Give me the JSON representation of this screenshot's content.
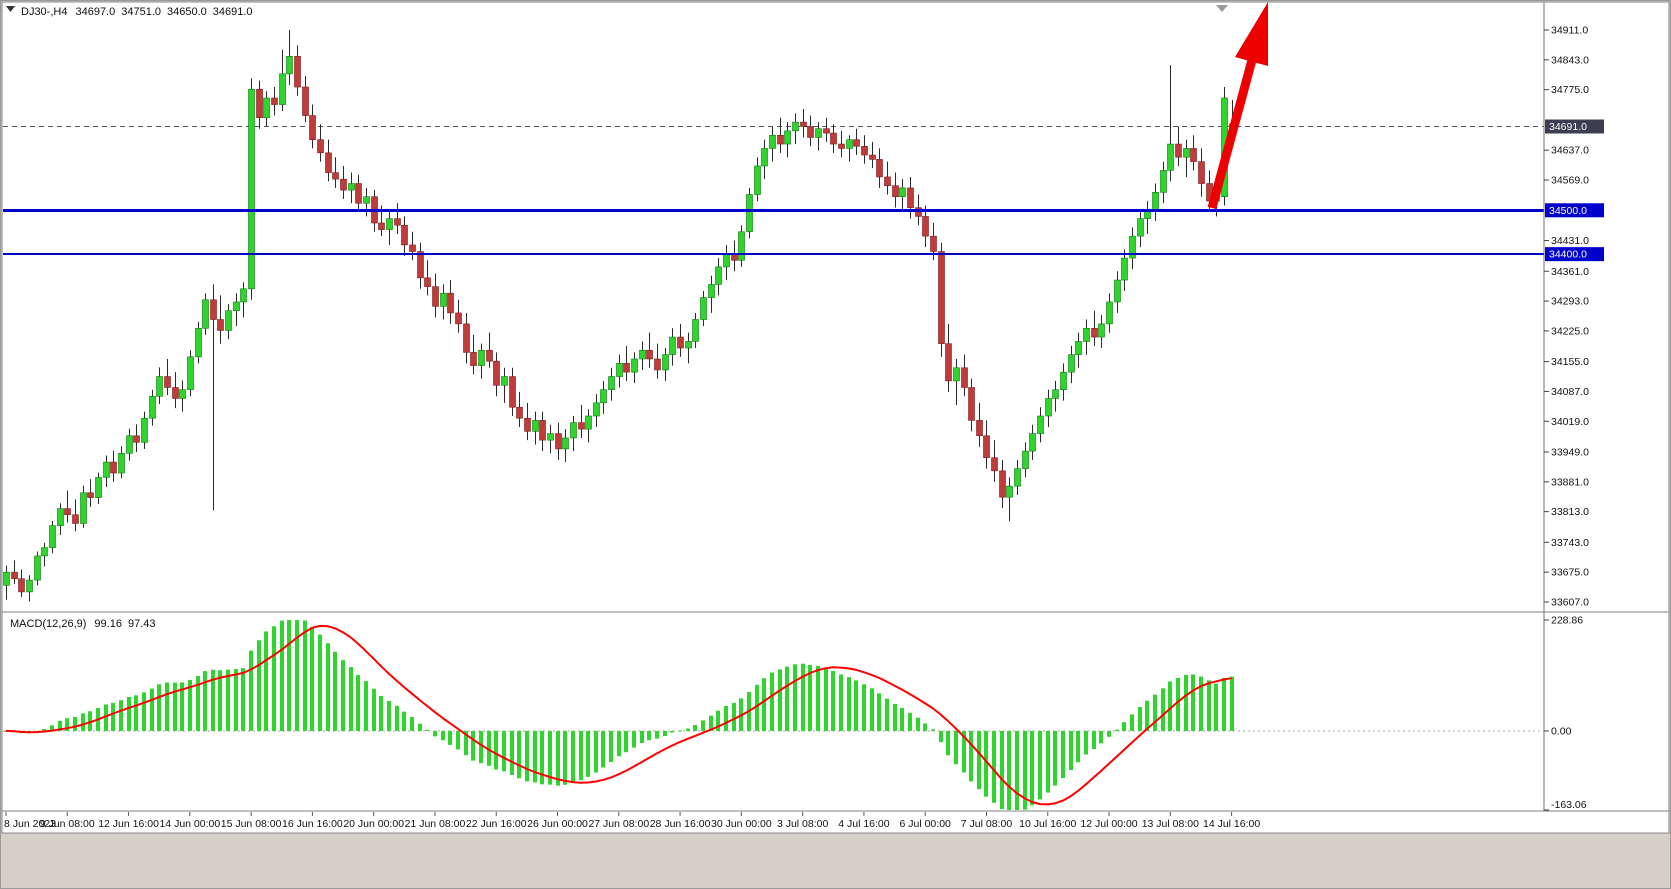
{
  "window": {
    "title_info": {
      "symbol_period": "DJ30-,H4",
      "open": "34697.0",
      "high": "34751.0",
      "low": "34650.0",
      "close": "34691.0"
    }
  },
  "chart_data": {
    "type": "candlestick",
    "symbol": "DJ30-",
    "timeframe": "H4",
    "price_axis": {
      "min": 33607.0,
      "max": 34911.0,
      "labels": [
        "34911.0",
        "34843.0",
        "34775.0",
        "34637.0",
        "34569.0",
        "34431.0",
        "34361.0",
        "34293.0",
        "34225.0",
        "34155.0",
        "34087.0",
        "34019.0",
        "33949.0",
        "33881.0",
        "33813.0",
        "33743.0",
        "33675.0",
        "33607.0"
      ]
    },
    "time_labels": [
      "8 Jun 2023",
      "9 Jun 08:00",
      "12 Jun 16:00",
      "14 Jun 00:00",
      "15 Jun 08:00",
      "16 Jun 16:00",
      "20 Jun 00:00",
      "21 Jun 08:00",
      "22 Jun 16:00",
      "26 Jun 00:00",
      "27 Jun 08:00",
      "28 Jun 16:00",
      "30 Jun 00:00",
      "3 Jul 08:00",
      "4 Jul 16:00",
      "6 Jul 00:00",
      "7 Jul 08:00",
      "10 Jul 16:00",
      "12 Jul 00:00",
      "13 Jul 08:00",
      "14 Jul 16:00"
    ],
    "bars_per_label": 8,
    "candles": [
      [
        33645,
        33690,
        33612,
        33675
      ],
      [
        33675,
        33702,
        33648,
        33660
      ],
      [
        33660,
        33681,
        33618,
        33630
      ],
      [
        33630,
        33668,
        33608,
        33657
      ],
      [
        33657,
        33722,
        33645,
        33712
      ],
      [
        33712,
        33742,
        33688,
        33731
      ],
      [
        33731,
        33792,
        33718,
        33781
      ],
      [
        33781,
        33832,
        33760,
        33820
      ],
      [
        33820,
        33861,
        33788,
        33806
      ],
      [
        33806,
        33841,
        33768,
        33786
      ],
      [
        33786,
        33872,
        33776,
        33856
      ],
      [
        33856,
        33887,
        33824,
        33845
      ],
      [
        33845,
        33902,
        33830,
        33891
      ],
      [
        33891,
        33941,
        33869,
        33926
      ],
      [
        33926,
        33952,
        33881,
        33901
      ],
      [
        33901,
        33962,
        33889,
        33946
      ],
      [
        33946,
        34002,
        33929,
        33986
      ],
      [
        33986,
        34012,
        33949,
        33971
      ],
      [
        33971,
        34041,
        33956,
        34026
      ],
      [
        34026,
        34091,
        34009,
        34076
      ],
      [
        34076,
        34142,
        34058,
        34121
      ],
      [
        34121,
        34161,
        34079,
        34096
      ],
      [
        34096,
        34131,
        34049,
        34071
      ],
      [
        34071,
        34112,
        34041,
        34091
      ],
      [
        34091,
        34181,
        34076,
        34166
      ],
      [
        34166,
        34246,
        34151,
        34231
      ],
      [
        34231,
        34311,
        34216,
        34296
      ],
      [
        34296,
        34331,
        33816,
        34251
      ],
      [
        34251,
        34306,
        34196,
        34226
      ],
      [
        34226,
        34286,
        34206,
        34271
      ],
      [
        34271,
        34311,
        34236,
        34291
      ],
      [
        34291,
        34336,
        34256,
        34321
      ],
      [
        34321,
        34801,
        34296,
        34776
      ],
      [
        34776,
        34796,
        34686,
        34711
      ],
      [
        34711,
        34771,
        34691,
        34756
      ],
      [
        34756,
        34781,
        34716,
        34741
      ],
      [
        34741,
        34866,
        34726,
        34811
      ],
      [
        34811,
        34911,
        34786,
        34851
      ],
      [
        34851,
        34876,
        34761,
        34781
      ],
      [
        34781,
        34806,
        34701,
        34716
      ],
      [
        34716,
        34741,
        34641,
        34661
      ],
      [
        34661,
        34696,
        34611,
        34631
      ],
      [
        34631,
        34661,
        34566,
        34586
      ],
      [
        34586,
        34621,
        34551,
        34571
      ],
      [
        34571,
        34601,
        34526,
        34546
      ],
      [
        34546,
        34586,
        34516,
        34561
      ],
      [
        34561,
        34581,
        34496,
        34516
      ],
      [
        34516,
        34551,
        34486,
        34531
      ],
      [
        34531,
        34546,
        34451,
        34471
      ],
      [
        34471,
        34511,
        34441,
        34456
      ],
      [
        34456,
        34496,
        34421,
        34481
      ],
      [
        34481,
        34516,
        34446,
        34466
      ],
      [
        34466,
        34486,
        34396,
        34421
      ],
      [
        34421,
        34451,
        34386,
        34406
      ],
      [
        34406,
        34426,
        34321,
        34346
      ],
      [
        34346,
        34386,
        34306,
        34326
      ],
      [
        34326,
        34356,
        34256,
        34281
      ],
      [
        34281,
        34331,
        34251,
        34311
      ],
      [
        34311,
        34341,
        34241,
        34266
      ],
      [
        34266,
        34296,
        34221,
        34241
      ],
      [
        34241,
        34266,
        34151,
        34176
      ],
      [
        34176,
        34216,
        34126,
        34146
      ],
      [
        34146,
        34196,
        34116,
        34181
      ],
      [
        34181,
        34221,
        34141,
        34156
      ],
      [
        34156,
        34176,
        34076,
        34101
      ],
      [
        34101,
        34141,
        34061,
        34121
      ],
      [
        34121,
        34141,
        34031,
        34051
      ],
      [
        34051,
        34086,
        34006,
        34026
      ],
      [
        34026,
        34061,
        33976,
        33996
      ],
      [
        33996,
        34041,
        33966,
        34021
      ],
      [
        34021,
        34041,
        33951,
        33976
      ],
      [
        33976,
        34011,
        33946,
        33991
      ],
      [
        33991,
        34016,
        33931,
        33956
      ],
      [
        33956,
        34001,
        33926,
        33981
      ],
      [
        33981,
        34031,
        33951,
        34016
      ],
      [
        34016,
        34056,
        33981,
        34001
      ],
      [
        34001,
        34046,
        33971,
        34031
      ],
      [
        34031,
        34081,
        34006,
        34061
      ],
      [
        34061,
        34111,
        34036,
        34091
      ],
      [
        34091,
        34141,
        34066,
        34121
      ],
      [
        34121,
        34171,
        34096,
        34151
      ],
      [
        34151,
        34191,
        34111,
        34131
      ],
      [
        34131,
        34176,
        34106,
        34161
      ],
      [
        34161,
        34201,
        34136,
        34181
      ],
      [
        34181,
        34221,
        34141,
        34161
      ],
      [
        34161,
        34196,
        34116,
        34136
      ],
      [
        34136,
        34186,
        34111,
        34171
      ],
      [
        34171,
        34231,
        34146,
        34211
      ],
      [
        34211,
        34241,
        34166,
        34186
      ],
      [
        34186,
        34221,
        34151,
        34201
      ],
      [
        34201,
        34266,
        34186,
        34251
      ],
      [
        34251,
        34316,
        34236,
        34301
      ],
      [
        34301,
        34351,
        34266,
        34331
      ],
      [
        34331,
        34391,
        34306,
        34371
      ],
      [
        34371,
        34421,
        34341,
        34401
      ],
      [
        34401,
        34431,
        34361,
        34386
      ],
      [
        34386,
        34466,
        34371,
        34451
      ],
      [
        34451,
        34551,
        34436,
        34536
      ],
      [
        34536,
        34621,
        34521,
        34601
      ],
      [
        34601,
        34661,
        34571,
        34641
      ],
      [
        34641,
        34691,
        34611,
        34671
      ],
      [
        34671,
        34711,
        34631,
        34651
      ],
      [
        34651,
        34701,
        34621,
        34681
      ],
      [
        34681,
        34721,
        34651,
        34701
      ],
      [
        34701,
        34731,
        34666,
        34691
      ],
      [
        34691,
        34716,
        34646,
        34666
      ],
      [
        34666,
        34701,
        34636,
        34686
      ],
      [
        34686,
        34711,
        34656,
        34676
      ],
      [
        34676,
        34696,
        34631,
        34651
      ],
      [
        34651,
        34681,
        34621,
        34641
      ],
      [
        34641,
        34671,
        34611,
        34661
      ],
      [
        34661,
        34686,
        34626,
        34646
      ],
      [
        34646,
        34671,
        34606,
        34626
      ],
      [
        34626,
        34656,
        34596,
        34616
      ],
      [
        34616,
        34641,
        34551,
        34576
      ],
      [
        34576,
        34611,
        34536,
        34556
      ],
      [
        34556,
        34586,
        34506,
        34531
      ],
      [
        34531,
        34571,
        34496,
        34551
      ],
      [
        34551,
        34576,
        34481,
        34506
      ],
      [
        34506,
        34536,
        34466,
        34486
      ],
      [
        34486,
        34511,
        34416,
        34441
      ],
      [
        34441,
        34471,
        34386,
        34406
      ],
      [
        34406,
        34426,
        34166,
        34196
      ],
      [
        34196,
        34241,
        34086,
        34111
      ],
      [
        34111,
        34161,
        34056,
        34141
      ],
      [
        34141,
        34171,
        34076,
        34096
      ],
      [
        34096,
        34116,
        33996,
        34021
      ],
      [
        34021,
        34061,
        33961,
        33986
      ],
      [
        33986,
        34021,
        33911,
        33936
      ],
      [
        33936,
        33976,
        33881,
        33906
      ],
      [
        33906,
        33931,
        33821,
        33846
      ],
      [
        33846,
        33891,
        33791,
        33871
      ],
      [
        33871,
        33931,
        33851,
        33911
      ],
      [
        33911,
        33971,
        33891,
        33951
      ],
      [
        33951,
        34011,
        33931,
        33991
      ],
      [
        33991,
        34051,
        33971,
        34031
      ],
      [
        34031,
        34091,
        34006,
        34071
      ],
      [
        34071,
        34111,
        34041,
        34091
      ],
      [
        34091,
        34151,
        34066,
        34131
      ],
      [
        34131,
        34191,
        34106,
        34171
      ],
      [
        34171,
        34221,
        34141,
        34201
      ],
      [
        34201,
        34251,
        34171,
        34231
      ],
      [
        34231,
        34271,
        34191,
        34211
      ],
      [
        34211,
        34261,
        34186,
        34241
      ],
      [
        34241,
        34311,
        34221,
        34291
      ],
      [
        34291,
        34361,
        34266,
        34341
      ],
      [
        34341,
        34411,
        34316,
        34391
      ],
      [
        34391,
        34461,
        34366,
        34441
      ],
      [
        34441,
        34501,
        34416,
        34481
      ],
      [
        34481,
        34521,
        34446,
        34501
      ],
      [
        34501,
        34561,
        34476,
        34541
      ],
      [
        34541,
        34611,
        34516,
        34591
      ],
      [
        34591,
        34831,
        34566,
        34651
      ],
      [
        34651,
        34691,
        34601,
        34621
      ],
      [
        34621,
        34661,
        34576,
        34641
      ],
      [
        34641,
        34671,
        34591,
        34611
      ],
      [
        34611,
        34641,
        34531,
        34561
      ],
      [
        34561,
        34591,
        34501,
        34521
      ],
      [
        34521,
        34551,
        34486,
        34531
      ],
      [
        34531,
        34781,
        34511,
        34756
      ],
      [
        34697,
        34751,
        34650,
        34691
      ]
    ],
    "hlines": [
      {
        "price": 34500.0,
        "label": "34500.0",
        "color": "#0000cc",
        "width": 3
      },
      {
        "price": 34400.0,
        "label": "34400.0",
        "color": "#0000cc",
        "width": 2
      }
    ],
    "bid": {
      "price": 34691.0,
      "label": "34691.0"
    },
    "indicator": {
      "type": "macd",
      "label": "MACD(12,26,9)",
      "params": [
        12,
        26,
        9
      ],
      "macd_value": "99.16",
      "signal_value": "97.43",
      "axis_labels": [
        "228.86",
        "0.00",
        "-163.06"
      ],
      "axis_values": [
        228.86,
        0.0,
        -163.06
      ],
      "histogram_color": "#2fd42f",
      "signal_color": "#ff0000"
    },
    "colors": {
      "bull_fill": "#2fd42f",
      "bull_stroke": "#0b7a0b",
      "bear_fill": "#c23b3b",
      "bear_stroke": "#7d1f1f",
      "wick": "#2a2a2a",
      "bid_line": "#555566",
      "bid_box_bg": "#3d3d52",
      "axis_text": "#111111",
      "arrow": "#ee0000"
    },
    "annotation_arrow": {
      "direction": "up-right",
      "color": "#ee0000"
    }
  }
}
